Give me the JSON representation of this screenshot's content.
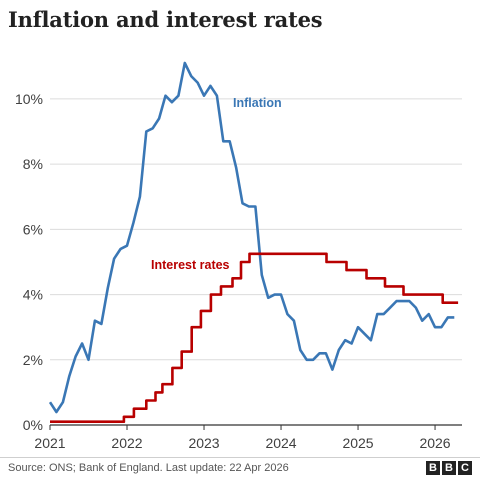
{
  "title": "Inflation and interest rates",
  "source": "Source: ONS; Bank of England. Last update: 22 Apr 2026",
  "brand": [
    "B",
    "B",
    "C"
  ],
  "chart_data": {
    "type": "line",
    "title": "Inflation and interest rates",
    "xlabel": "",
    "ylabel": "",
    "xlim": [
      2021.0,
      2026.35
    ],
    "ylim": [
      0,
      11.5
    ],
    "grid": true,
    "x_ticks": [
      2021,
      2022,
      2023,
      2024,
      2025,
      2026
    ],
    "x_tick_labels": [
      "2021",
      "2022",
      "2023",
      "2024",
      "2025",
      "2026"
    ],
    "y_ticks": [
      0,
      2,
      4,
      6,
      8,
      10
    ],
    "y_tick_labels": [
      "0%",
      "2%",
      "4%",
      "6%",
      "8%",
      "10%"
    ],
    "series": [
      {
        "name": "Inflation",
        "label_text": "Inflation",
        "color": "#3a77b5",
        "step": false,
        "x": [
          2021.0,
          2021.083,
          2021.167,
          2021.25,
          2021.333,
          2021.417,
          2021.5,
          2021.583,
          2021.667,
          2021.75,
          2021.833,
          2021.917,
          2022.0,
          2022.083,
          2022.167,
          2022.25,
          2022.333,
          2022.417,
          2022.5,
          2022.583,
          2022.667,
          2022.75,
          2022.833,
          2022.917,
          2023.0,
          2023.083,
          2023.167,
          2023.25,
          2023.333,
          2023.417,
          2023.5,
          2023.583,
          2023.667,
          2023.75,
          2023.833,
          2023.917,
          2024.0,
          2024.083,
          2024.167,
          2024.25,
          2024.333,
          2024.417,
          2024.5,
          2024.583,
          2024.667,
          2024.75,
          2024.833,
          2024.917,
          2025.0,
          2025.083,
          2025.167,
          2025.25,
          2025.333,
          2025.417,
          2025.5,
          2025.583,
          2025.667,
          2025.75,
          2025.833,
          2025.917,
          2026.0,
          2026.083,
          2026.167,
          2026.25
        ],
        "y": [
          0.7,
          0.4,
          0.7,
          1.5,
          2.1,
          2.5,
          2.0,
          3.2,
          3.1,
          4.2,
          5.1,
          5.4,
          5.5,
          6.2,
          7.0,
          9.0,
          9.1,
          9.4,
          10.1,
          9.9,
          10.1,
          11.1,
          10.7,
          10.5,
          10.1,
          10.4,
          10.1,
          8.7,
          8.7,
          7.9,
          6.8,
          6.7,
          6.7,
          4.6,
          3.9,
          4.0,
          4.0,
          3.4,
          3.2,
          2.3,
          2.0,
          2.0,
          2.2,
          2.2,
          1.7,
          2.3,
          2.6,
          2.5,
          3.0,
          2.8,
          2.6,
          3.4,
          3.4,
          3.6,
          3.8,
          3.8,
          3.8,
          3.6,
          3.2,
          3.4,
          3.0,
          3.0,
          3.3,
          3.3
        ]
      },
      {
        "name": "Interest rates",
        "label_text": "Interest rates",
        "color": "#b80000",
        "step": true,
        "x": [
          2021.0,
          2021.96,
          2022.09,
          2022.25,
          2022.37,
          2022.46,
          2022.59,
          2022.71,
          2022.84,
          2022.96,
          2023.09,
          2023.22,
          2023.37,
          2023.48,
          2023.59,
          2024.59,
          2024.85,
          2025.11,
          2025.35,
          2025.59,
          2025.85,
          2026.1,
          2026.3
        ],
        "y": [
          0.1,
          0.25,
          0.5,
          0.75,
          1.0,
          1.25,
          1.75,
          2.25,
          3.0,
          3.5,
          4.0,
          4.25,
          4.5,
          5.0,
          5.25,
          5.0,
          4.75,
          4.5,
          4.25,
          4.0,
          4.0,
          3.75,
          3.75
        ]
      }
    ]
  }
}
